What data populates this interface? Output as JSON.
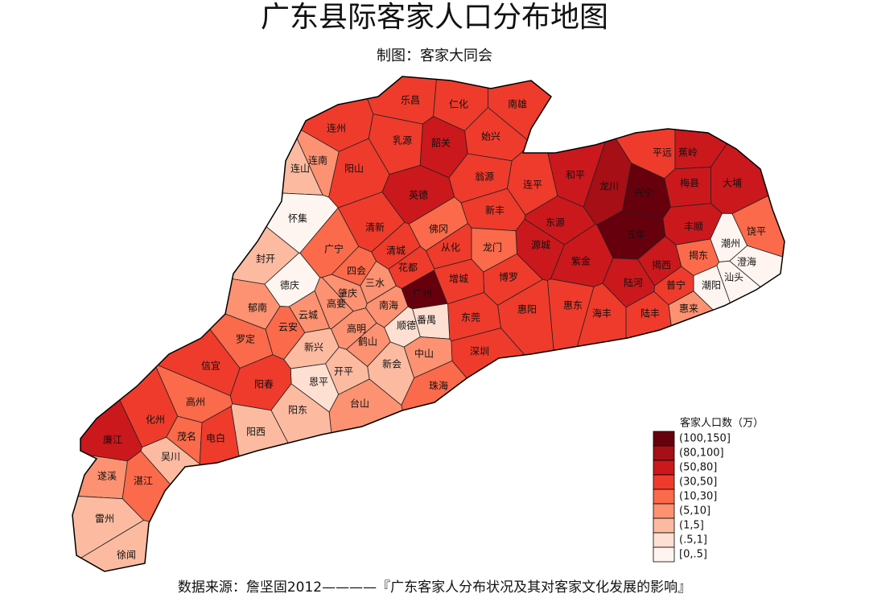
{
  "title": "广东县际客家人口分布地图",
  "subtitle": "制图：客家大同会",
  "source": "数据来源：詹坚固2012————『广东客家人分布状况及其对客家文化发展的影响』",
  "legend": {
    "title": "客家人口数（万）",
    "classes": [
      {
        "label": "(100,150]",
        "color": "#67000d"
      },
      {
        "label": "(80,100]",
        "color": "#a50f15"
      },
      {
        "label": "(50,80]",
        "color": "#cb181d"
      },
      {
        "label": "(30,50]",
        "color": "#ef3b2c"
      },
      {
        "label": "(10,30]",
        "color": "#fb6a4a"
      },
      {
        "label": "(5,10]",
        "color": "#fc9272"
      },
      {
        "label": "(1,5]",
        "color": "#fcbba1"
      },
      {
        "label": "(.5,1]",
        "color": "#fee0d2"
      },
      {
        "label": "[0,.5]",
        "color": "#fff5f0"
      }
    ]
  },
  "counties": [
    {
      "name": "乐昌",
      "range": "(30,50]"
    },
    {
      "name": "仁化",
      "range": "(30,50]"
    },
    {
      "name": "南雄",
      "range": "(30,50]"
    },
    {
      "name": "始兴",
      "range": "(30,50]"
    },
    {
      "name": "乳源",
      "range": "(30,50]"
    },
    {
      "name": "韶关",
      "range": "(50,80]"
    },
    {
      "name": "翁源",
      "range": "(30,50]"
    },
    {
      "name": "连州",
      "range": "(30,50]"
    },
    {
      "name": "连南",
      "range": "(5,10]"
    },
    {
      "name": "连山",
      "range": "(1,5]"
    },
    {
      "name": "阳山",
      "range": "(30,50]"
    },
    {
      "name": "英德",
      "range": "(50,80]"
    },
    {
      "name": "连平",
      "range": "(30,50]"
    },
    {
      "name": "和平",
      "range": "(50,80]"
    },
    {
      "name": "龙川",
      "range": "(80,100]"
    },
    {
      "name": "兴宁",
      "range": "(100,150]"
    },
    {
      "name": "平远",
      "range": "(30,50]"
    },
    {
      "name": "蕉岭",
      "range": "(50,80]"
    },
    {
      "name": "梅县",
      "range": "(50,80]"
    },
    {
      "name": "大埔",
      "range": "(50,80]"
    },
    {
      "name": "丰顺",
      "range": "(50,80]"
    },
    {
      "name": "五华",
      "range": "(100,150]"
    },
    {
      "name": "饶平",
      "range": "(10,30]"
    },
    {
      "name": "潮州",
      "range": "[0,.5]"
    },
    {
      "name": "揭东",
      "range": "(10,30]"
    },
    {
      "name": "澄海",
      "range": "[0,.5]"
    },
    {
      "name": "汕头",
      "range": "[0,.5]"
    },
    {
      "name": "潮阳",
      "range": "[0,.5]"
    },
    {
      "name": "揭西",
      "range": "(50,80]"
    },
    {
      "name": "普宁",
      "range": "(30,50]"
    },
    {
      "name": "惠来",
      "range": "(5,10]"
    },
    {
      "name": "陆河",
      "range": "(50,80]"
    },
    {
      "name": "陆丰",
      "range": "(30,50]"
    },
    {
      "name": "海丰",
      "range": "(30,50]"
    },
    {
      "name": "紫金",
      "range": "(50,80]"
    },
    {
      "name": "东源",
      "range": "(50,80]"
    },
    {
      "name": "源城",
      "range": "(50,80]"
    },
    {
      "name": "新丰",
      "range": "(30,50]"
    },
    {
      "name": "佛冈",
      "range": "(10,30]"
    },
    {
      "name": "从化",
      "range": "(30,50]"
    },
    {
      "name": "龙门",
      "range": "(10,30]"
    },
    {
      "name": "博罗",
      "range": "(30,50]"
    },
    {
      "name": "增城",
      "range": "(30,50]"
    },
    {
      "name": "惠阳",
      "range": "(30,50]"
    },
    {
      "name": "惠东",
      "range": "(30,50]"
    },
    {
      "name": "东莞",
      "range": "(30,50]"
    },
    {
      "name": "深圳",
      "range": "(30,50]"
    },
    {
      "name": "番禺",
      "range": "(.5,1]"
    },
    {
      "name": "广州",
      "range": "(100,150]"
    },
    {
      "name": "花都",
      "range": "(30,50]"
    },
    {
      "name": "清城",
      "range": "(30,50]"
    },
    {
      "name": "清新",
      "range": "(30,50]"
    },
    {
      "name": "南海",
      "range": "(5,10]"
    },
    {
      "name": "顺德",
      "range": "(.5,1]"
    },
    {
      "name": "中山",
      "range": "(5,10]"
    },
    {
      "name": "珠海",
      "range": "(10,30]"
    },
    {
      "name": "新会",
      "range": "(1,5]"
    },
    {
      "name": "台山",
      "range": "(5,10]"
    },
    {
      "name": "开平",
      "range": "(1,5]"
    },
    {
      "name": "恩平",
      "range": "(.5,1]"
    },
    {
      "name": "鹤山",
      "range": "(5,10]"
    },
    {
      "name": "高明",
      "range": "(5,10]"
    },
    {
      "name": "三水",
      "range": "(5,10]"
    },
    {
      "name": "四会",
      "range": "(10,30]"
    },
    {
      "name": "广宁",
      "range": "(10,30]"
    },
    {
      "name": "怀集",
      "range": "[0,.5]"
    },
    {
      "name": "封开",
      "range": "(1,5]"
    },
    {
      "name": "德庆",
      "range": "[0,.5]"
    },
    {
      "name": "肇庆",
      "range": "(5,10]"
    },
    {
      "name": "高要",
      "range": "(5,10]"
    },
    {
      "name": "云城",
      "range": "(5,10]"
    },
    {
      "name": "郁南",
      "range": "(5,10]"
    },
    {
      "name": "云安",
      "range": "(10,30]"
    },
    {
      "name": "新兴",
      "range": "(1,5]"
    },
    {
      "name": "罗定",
      "range": "(10,30]"
    },
    {
      "name": "信宜",
      "range": "(30,50]"
    },
    {
      "name": "阳春",
      "range": "(30,50]"
    },
    {
      "name": "阳东",
      "range": "(1,5]"
    },
    {
      "name": "阳西",
      "range": "(1,5]"
    },
    {
      "name": "高州",
      "range": "(10,30]"
    },
    {
      "name": "化州",
      "range": "(30,50]"
    },
    {
      "name": "茂名",
      "range": "(10,30]"
    },
    {
      "name": "电白",
      "range": "(30,50]"
    },
    {
      "name": "廉江",
      "range": "(50,80]"
    },
    {
      "name": "吴川",
      "range": "(1,5]"
    },
    {
      "name": "遂溪",
      "range": "(5,10]"
    },
    {
      "name": "湛江",
      "range": "(10,30]"
    },
    {
      "name": "雷州",
      "range": "(1,5]"
    },
    {
      "name": "徐闻",
      "range": "(1,5]"
    }
  ]
}
